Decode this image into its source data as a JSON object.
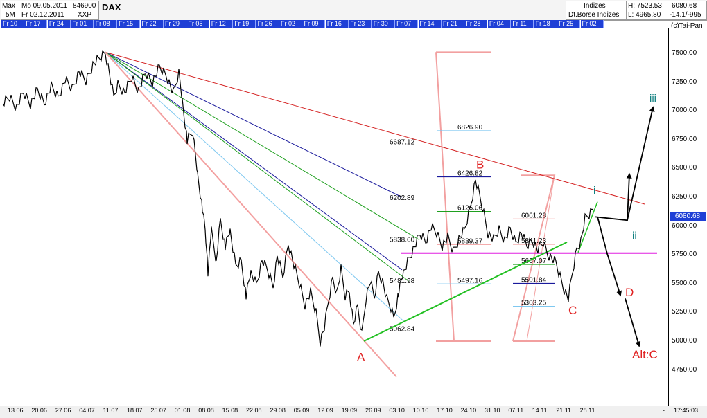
{
  "header": {
    "type_label": "Max",
    "period_label": "5M",
    "start_date": "Mo 09.05.2011",
    "end_date": "Fr 02.12.2011",
    "volume": "846900",
    "exchange": "XXP",
    "symbol": "DAX",
    "category": "Indizes",
    "source": "Dt.Börse Indizes",
    "high": "H: 7523.53",
    "low": "L: 4965.80",
    "last": "6080.68",
    "change": "-14.1/-995",
    "copyright": "(c)Tai-Pan"
  },
  "fridays": [
    "Fr 10",
    "Fr 17",
    "Fr 24",
    "Fr 01",
    "Fr 08",
    "Fr 15",
    "Fr 22",
    "Fr 29",
    "Fr 05",
    "Fr 12",
    "Fr 19",
    "Fr 26",
    "Fr 02",
    "Fr 09",
    "Fr 16",
    "Fr 23",
    "Fr 30",
    "Fr 07",
    "Fr 14",
    "Fr 21",
    "Fr 28",
    "Fr 04",
    "Fr 11",
    "Fr 18",
    "Fr 25",
    "Fr 02"
  ],
  "xaxis": {
    "ticks": [
      "13.06",
      "20.06",
      "27.06",
      "04.07",
      "11.07",
      "18.07",
      "25.07",
      "01.08",
      "08.08",
      "15.08",
      "22.08",
      "29.08",
      "05.09",
      "12.09",
      "19.09",
      "26.09",
      "03.10",
      "10.10",
      "17.10",
      "24.10",
      "31.10",
      "07.11",
      "14.11",
      "21.11",
      "28.11"
    ],
    "time": "17:45:03"
  },
  "chart_data": {
    "type": "line",
    "ylim": [
      4600,
      7700
    ],
    "yticks": [
      4750,
      5000,
      5250,
      5500,
      5750,
      6000,
      6250,
      6500,
      6750,
      7000,
      7250,
      7500
    ],
    "last_price": 6080.68,
    "colors": {
      "price": "#000000",
      "fan_red": "#d42020",
      "fan_salmon": "#f3a0a0",
      "fan_blue": "#1a1a9c",
      "fan_green": "#1fa01f",
      "fan_lightblue": "#7fc8f0",
      "trend_green": "#22c022",
      "support": "#e020e0",
      "wave_red": "#e02020",
      "wave_teal": "#108080",
      "projection": "#000000",
      "fib": "#f2a0a0"
    },
    "fib_levels": [
      {
        "label": "6826.90",
        "value": 6826.9,
        "color": "#7fc8f0"
      },
      {
        "label": "6426.82",
        "value": 6426.82,
        "color": "#1a1a9c"
      },
      {
        "label": "6126.06",
        "value": 6126.06,
        "color": "#1fa01f"
      },
      {
        "label": "5839.37",
        "value": 5839.37,
        "color": "#f2a0a0"
      },
      {
        "label": "5497.16",
        "value": 5497.16,
        "color": "#7fc8f0"
      },
      {
        "label": "6061.28",
        "value": 6061.28,
        "color": "#f2a0a0"
      },
      {
        "label": "5841.23",
        "value": 5841.23,
        "color": "#f2a0a0"
      },
      {
        "label": "5667.07",
        "value": 5667.07,
        "color": "#1fa01f"
      },
      {
        "label": "5501.84",
        "value": 5501.84,
        "color": "#1a1a9c"
      },
      {
        "label": "5303.25",
        "value": 5303.25,
        "color": "#7fc8f0"
      }
    ],
    "fan_labels": [
      {
        "label": "6687.12",
        "color": "#000"
      },
      {
        "label": "6202.89",
        "color": "#000"
      },
      {
        "label": "5838.60",
        "color": "#000"
      },
      {
        "label": "5481.98",
        "color": "#000"
      },
      {
        "label": "5062.84",
        "color": "#000"
      }
    ],
    "waves": [
      {
        "label": "A",
        "color": "#e02020"
      },
      {
        "label": "B",
        "color": "#e02020"
      },
      {
        "label": "C",
        "color": "#e02020"
      },
      {
        "label": "D",
        "color": "#e02020"
      },
      {
        "label": "Alt:C",
        "color": "#e02020"
      },
      {
        "label": "i",
        "color": "#108080"
      },
      {
        "label": "ii",
        "color": "#108080"
      },
      {
        "label": "iii",
        "color": "#108080"
      }
    ]
  }
}
